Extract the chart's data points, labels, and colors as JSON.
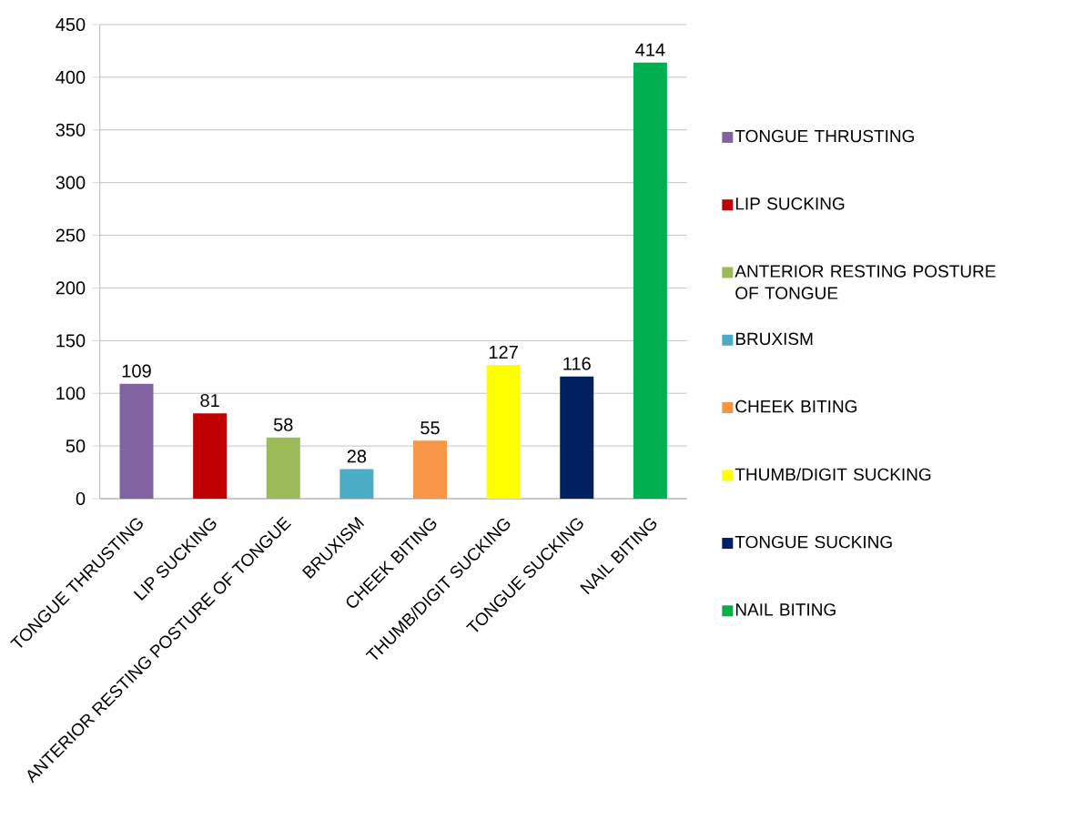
{
  "chart_data": {
    "type": "bar",
    "categories": [
      "TONGUE THRUSTING",
      "LIP SUCKING",
      "ANTERIOR RESTING POSTURE OF TONGUE",
      "BRUXISM",
      "CHEEK BITING",
      "THUMB/DIGIT SUCKING",
      "TONGUE SUCKING",
      "NAIL BITING"
    ],
    "series": [
      {
        "name": "TONGUE THRUSTING",
        "color": "#8064a2",
        "values": [
          109,
          null,
          null,
          null,
          null,
          null,
          null,
          null
        ]
      },
      {
        "name": "LIP SUCKING",
        "color": "#c00000",
        "values": [
          null,
          81,
          null,
          null,
          null,
          null,
          null,
          null
        ]
      },
      {
        "name": "ANTERIOR RESTING POSTURE OF TONGUE",
        "color": "#9bbb59",
        "values": [
          null,
          null,
          58,
          null,
          null,
          null,
          null,
          null
        ]
      },
      {
        "name": "BRUXISM",
        "color": "#4bacc6",
        "values": [
          null,
          null,
          null,
          28,
          null,
          null,
          null,
          null
        ]
      },
      {
        "name": "CHEEK BITING",
        "color": "#f79646",
        "values": [
          null,
          null,
          null,
          null,
          55,
          null,
          null,
          null
        ]
      },
      {
        "name": "THUMB/DIGIT SUCKING",
        "color": "#ffff00",
        "values": [
          null,
          null,
          null,
          null,
          null,
          127,
          null,
          null
        ]
      },
      {
        "name": "TONGUE SUCKING",
        "color": "#002060",
        "values": [
          null,
          null,
          null,
          null,
          null,
          null,
          116,
          null
        ]
      },
      {
        "name": "NAIL BITING",
        "color": "#00b050",
        "values": [
          null,
          null,
          null,
          null,
          null,
          null,
          null,
          414
        ]
      }
    ],
    "ylim": [
      0,
      450
    ],
    "yticks": [
      0,
      50,
      100,
      150,
      200,
      250,
      300,
      350,
      400,
      450
    ],
    "grid": "y",
    "legend": "right",
    "data_labels": true
  }
}
